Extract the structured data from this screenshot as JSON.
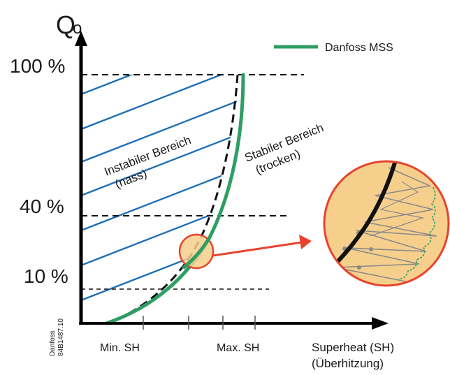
{
  "axes": {
    "y_label": "Q",
    "y_label_subscript": "o",
    "x_label_line1": "Superheat (SH)",
    "x_label_line2": "(Überhitzung)",
    "x_tick_min": "Min. SH",
    "x_tick_max": "Max. SH"
  },
  "levels": [
    "100 %",
    "40 %",
    "10 %"
  ],
  "legend": {
    "label": "Danfoss MSS",
    "color": "#2e9e63"
  },
  "regions": {
    "unstable_line1": "Instabiler Bereich",
    "unstable_line2": "(nass)",
    "stable_line1": "Stabiler Bereich",
    "stable_line2": "(trocken)"
  },
  "code": {
    "line1": "Danfoss",
    "line2": "84B1487.10"
  },
  "colors": {
    "hatch": "#1f6fb5",
    "zoom_fill": "#f6cf8c",
    "zoom_stroke": "#e8432d",
    "arrow": "#e8432d",
    "mss": "#2e9e63"
  }
}
